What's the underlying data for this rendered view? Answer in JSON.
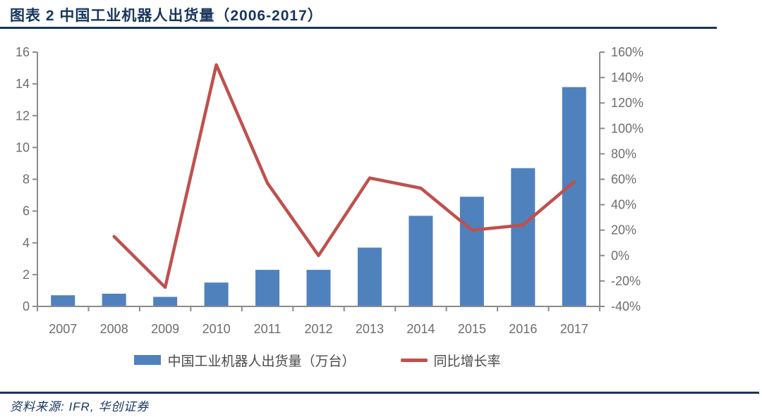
{
  "page": {
    "title": "图表 2 中国工业机器人出货量（2006-2017）",
    "source": "资料来源: IFR, 华创证券"
  },
  "colors": {
    "navy": "#17365D",
    "bar_blue": "#4F81BD",
    "line_red": "#C0504D",
    "axis_line": "#8C8C8C",
    "tick_text": "#6E6E6E",
    "legend_text": "#4A4A4A"
  },
  "chart_data": {
    "type": "bar",
    "subtype": "bar+line combo, dual axis",
    "title": "图表 2 中国工业机器人出货量（2006-2017）",
    "categories": [
      "2007",
      "2008",
      "2009",
      "2010",
      "2011",
      "2012",
      "2013",
      "2014",
      "2015",
      "2016",
      "2017"
    ],
    "series": [
      {
        "name": "中国工业机器人出货量（万台）",
        "type": "bar",
        "axis": "left",
        "values": [
          0.7,
          0.8,
          0.6,
          1.5,
          2.3,
          2.3,
          3.7,
          5.7,
          6.9,
          8.7,
          13.8
        ]
      },
      {
        "name": "同比增长率",
        "type": "line",
        "axis": "right",
        "unit": "%",
        "values": [
          null,
          15,
          -25,
          150,
          57,
          0,
          61,
          53,
          20,
          24,
          58
        ]
      }
    ],
    "left_axis": {
      "min": 0,
      "max": 16,
      "step": 2,
      "tick_labels": [
        "0",
        "2",
        "4",
        "6",
        "8",
        "10",
        "12",
        "14",
        "16"
      ]
    },
    "right_axis": {
      "min": -40,
      "max": 160,
      "step": 20,
      "tick_labels": [
        "-40%",
        "-20%",
        "0%",
        "20%",
        "40%",
        "60%",
        "80%",
        "100%",
        "120%",
        "140%",
        "160%"
      ]
    },
    "grid": false,
    "legend_position": "bottom"
  }
}
